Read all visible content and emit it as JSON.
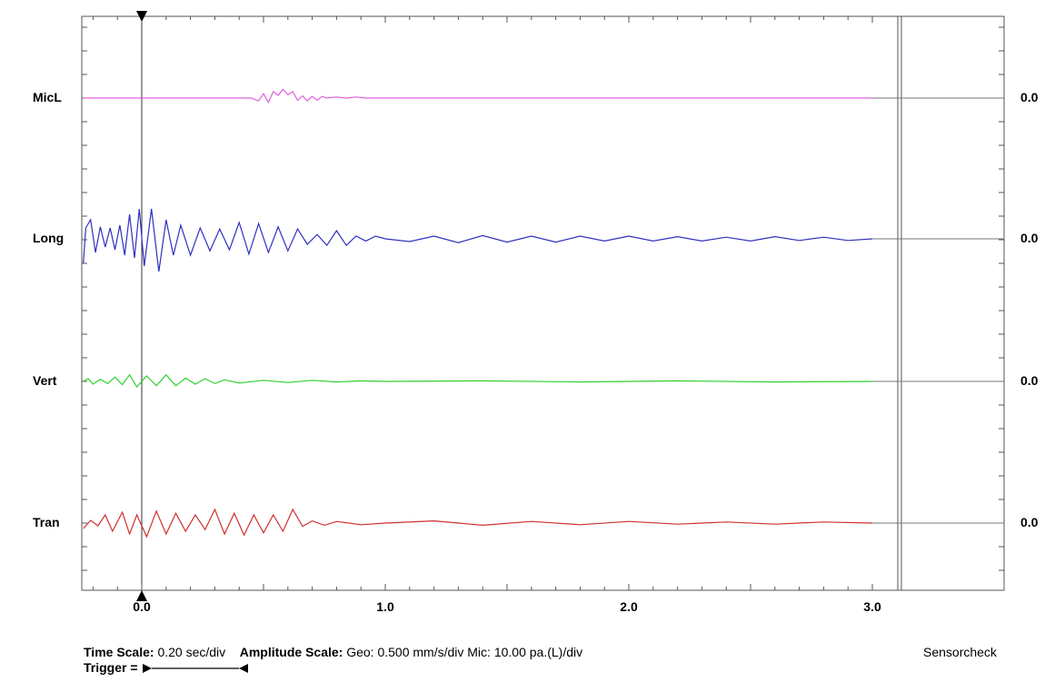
{
  "chart_data": {
    "type": "line",
    "x_ticks": [
      {
        "value": 0.0,
        "label": "0.0"
      },
      {
        "value": 1.0,
        "label": "1.0"
      },
      {
        "value": 2.0,
        "label": "2.0"
      },
      {
        "value": 3.0,
        "label": "3.0"
      }
    ],
    "xlim": [
      -0.24,
      3.1
    ],
    "trigger_time": 0.0,
    "end_time": 3.0,
    "series": [
      {
        "name": "MicL",
        "color": "#e060e0",
        "right_value": "0.0",
        "data": [
          [
            -0.24,
            0
          ],
          [
            0.45,
            0
          ],
          [
            0.48,
            -0.05
          ],
          [
            0.5,
            0.08
          ],
          [
            0.52,
            -0.08
          ],
          [
            0.54,
            0.12
          ],
          [
            0.56,
            0.05
          ],
          [
            0.58,
            0.16
          ],
          [
            0.6,
            0.06
          ],
          [
            0.62,
            0.12
          ],
          [
            0.64,
            -0.04
          ],
          [
            0.66,
            0.04
          ],
          [
            0.68,
            -0.05
          ],
          [
            0.7,
            0.03
          ],
          [
            0.72,
            -0.04
          ],
          [
            0.74,
            0.03
          ],
          [
            0.76,
            0
          ],
          [
            0.8,
            0.02
          ],
          [
            0.84,
            0
          ],
          [
            0.88,
            0.02
          ],
          [
            0.92,
            0
          ],
          [
            3.0,
            0
          ]
        ]
      },
      {
        "name": "Long",
        "color": "#3030c0",
        "right_value": "0.0",
        "data": [
          [
            -0.24,
            -0.45
          ],
          [
            -0.23,
            0.2
          ],
          [
            -0.21,
            0.35
          ],
          [
            -0.19,
            -0.25
          ],
          [
            -0.17,
            0.22
          ],
          [
            -0.15,
            -0.15
          ],
          [
            -0.13,
            0.2
          ],
          [
            -0.11,
            -0.2
          ],
          [
            -0.09,
            0.25
          ],
          [
            -0.07,
            -0.3
          ],
          [
            -0.05,
            0.45
          ],
          [
            -0.03,
            -0.35
          ],
          [
            -0.01,
            0.55
          ],
          [
            0.01,
            -0.5
          ],
          [
            0.04,
            0.55
          ],
          [
            0.07,
            -0.6
          ],
          [
            0.1,
            0.35
          ],
          [
            0.13,
            -0.3
          ],
          [
            0.16,
            0.25
          ],
          [
            0.2,
            -0.3
          ],
          [
            0.24,
            0.2
          ],
          [
            0.28,
            -0.22
          ],
          [
            0.32,
            0.18
          ],
          [
            0.36,
            -0.2
          ],
          [
            0.4,
            0.3
          ],
          [
            0.44,
            -0.28
          ],
          [
            0.48,
            0.28
          ],
          [
            0.52,
            -0.25
          ],
          [
            0.56,
            0.22
          ],
          [
            0.6,
            -0.22
          ],
          [
            0.64,
            0.18
          ],
          [
            0.68,
            -0.1
          ],
          [
            0.72,
            0.08
          ],
          [
            0.76,
            -0.12
          ],
          [
            0.8,
            0.15
          ],
          [
            0.84,
            -0.12
          ],
          [
            0.88,
            0.05
          ],
          [
            0.92,
            -0.04
          ],
          [
            0.96,
            0.05
          ],
          [
            1.0,
            0
          ],
          [
            1.1,
            -0.05
          ],
          [
            1.2,
            0.05
          ],
          [
            1.3,
            -0.07
          ],
          [
            1.4,
            0.06
          ],
          [
            1.5,
            -0.06
          ],
          [
            1.6,
            0.05
          ],
          [
            1.7,
            -0.06
          ],
          [
            1.8,
            0.05
          ],
          [
            1.9,
            -0.04
          ],
          [
            2.0,
            0.05
          ],
          [
            2.1,
            -0.04
          ],
          [
            2.2,
            0.04
          ],
          [
            2.3,
            -0.04
          ],
          [
            2.4,
            0.03
          ],
          [
            2.5,
            -0.04
          ],
          [
            2.6,
            0.04
          ],
          [
            2.7,
            -0.03
          ],
          [
            2.8,
            0.03
          ],
          [
            2.9,
            -0.03
          ],
          [
            3.0,
            0
          ]
        ]
      },
      {
        "name": "Vert",
        "color": "#30d030",
        "right_value": "0.0",
        "data": [
          [
            -0.24,
            0
          ],
          [
            -0.22,
            0.05
          ],
          [
            -0.2,
            -0.05
          ],
          [
            -0.17,
            0.04
          ],
          [
            -0.14,
            -0.04
          ],
          [
            -0.11,
            0.08
          ],
          [
            -0.08,
            -0.06
          ],
          [
            -0.05,
            0.12
          ],
          [
            -0.02,
            -0.1
          ],
          [
            0.02,
            0.1
          ],
          [
            0.06,
            -0.08
          ],
          [
            0.1,
            0.12
          ],
          [
            0.14,
            -0.08
          ],
          [
            0.18,
            0.06
          ],
          [
            0.22,
            -0.05
          ],
          [
            0.26,
            0.05
          ],
          [
            0.3,
            -0.04
          ],
          [
            0.34,
            0.03
          ],
          [
            0.4,
            -0.03
          ],
          [
            0.5,
            0.02
          ],
          [
            0.6,
            -0.02
          ],
          [
            0.7,
            0.02
          ],
          [
            0.8,
            -0.01
          ],
          [
            0.9,
            0.01
          ],
          [
            1.0,
            0
          ],
          [
            1.4,
            0.01
          ],
          [
            1.8,
            -0.01
          ],
          [
            2.2,
            0.01
          ],
          [
            2.6,
            -0.01
          ],
          [
            3.0,
            0
          ]
        ]
      },
      {
        "name": "Tran",
        "color": "#d03030",
        "right_value": "0.0",
        "data": [
          [
            -0.24,
            -0.1
          ],
          [
            -0.21,
            0.05
          ],
          [
            -0.18,
            -0.05
          ],
          [
            -0.15,
            0.15
          ],
          [
            -0.12,
            -0.15
          ],
          [
            -0.08,
            0.2
          ],
          [
            -0.05,
            -0.2
          ],
          [
            -0.02,
            0.15
          ],
          [
            0.02,
            -0.25
          ],
          [
            0.06,
            0.22
          ],
          [
            0.1,
            -0.2
          ],
          [
            0.14,
            0.18
          ],
          [
            0.18,
            -0.15
          ],
          [
            0.22,
            0.15
          ],
          [
            0.26,
            -0.12
          ],
          [
            0.3,
            0.25
          ],
          [
            0.34,
            -0.2
          ],
          [
            0.38,
            0.18
          ],
          [
            0.42,
            -0.22
          ],
          [
            0.46,
            0.15
          ],
          [
            0.5,
            -0.18
          ],
          [
            0.54,
            0.15
          ],
          [
            0.58,
            -0.15
          ],
          [
            0.62,
            0.25
          ],
          [
            0.66,
            -0.06
          ],
          [
            0.7,
            0.04
          ],
          [
            0.75,
            -0.04
          ],
          [
            0.8,
            0.03
          ],
          [
            0.9,
            -0.03
          ],
          [
            1.0,
            0
          ],
          [
            1.2,
            0.04
          ],
          [
            1.4,
            -0.04
          ],
          [
            1.6,
            0.03
          ],
          [
            1.8,
            -0.03
          ],
          [
            2.0,
            0.03
          ],
          [
            2.2,
            -0.02
          ],
          [
            2.4,
            0.02
          ],
          [
            2.6,
            -0.02
          ],
          [
            2.8,
            0.02
          ],
          [
            3.0,
            0
          ]
        ]
      }
    ]
  },
  "footer": {
    "time_scale_label": "Time Scale:",
    "time_scale_value": "0.20 sec/div",
    "amp_scale_label": "Amplitude Scale:",
    "amp_scale_value": "Geo: 0.500 mm/s/div Mic: 10.00 pa.(L)/div",
    "trigger_label": "Trigger =",
    "right_note": "Sensorcheck"
  }
}
